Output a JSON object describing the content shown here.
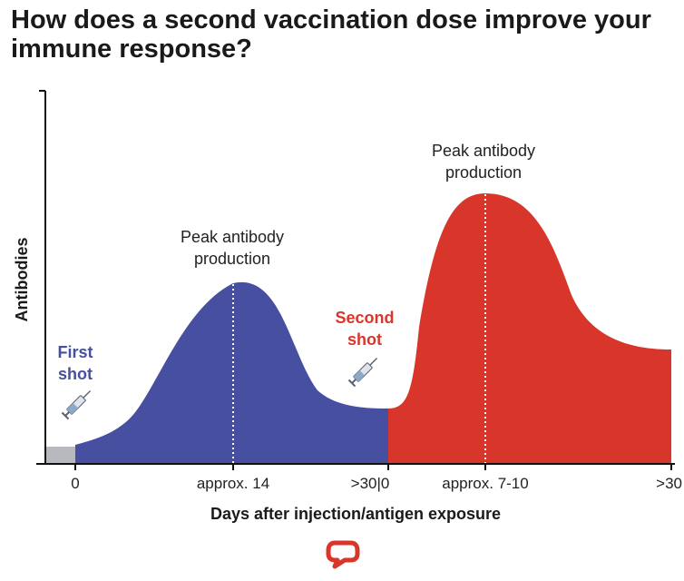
{
  "title": "How does a second vaccination dose improve your immune response?",
  "logo": {
    "name": "speech-bubble-logo",
    "color": "#d9362b"
  },
  "chart_data": {
    "type": "area",
    "title": "How does a second vaccination dose improve your immune response?",
    "xlabel": "Days after injection/antigen exposure",
    "ylabel": "Antibodies",
    "x_tick_labels": [
      "0",
      "approx. 14",
      ">30|0",
      "approx. 7-10",
      ">30"
    ],
    "grid": false,
    "series": [
      {
        "name": "First shot",
        "color": "#474fa0"
      },
      {
        "name": "Second shot",
        "color": "#d9362b"
      }
    ],
    "annotations": [
      {
        "text_lines": [
          "Peak antibody",
          "production"
        ],
        "at": "approx. 14"
      },
      {
        "text_lines": [
          "Peak antibody",
          "production"
        ],
        "at": "approx. 7-10"
      }
    ],
    "shot_labels": [
      {
        "lines": [
          "First",
          "shot"
        ],
        "color": "#474fa0"
      },
      {
        "lines": [
          "Second",
          "shot"
        ],
        "color": "#d9362b"
      }
    ],
    "pre_injection_color": "#b8b9bf"
  }
}
